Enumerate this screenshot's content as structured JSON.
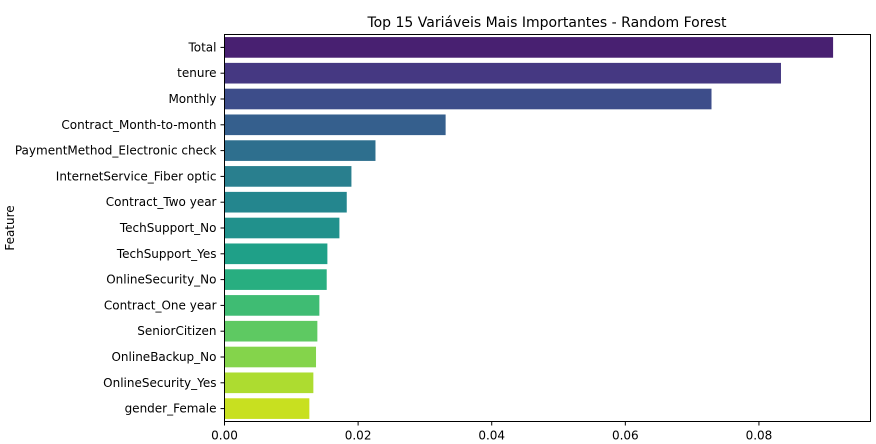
{
  "chart_data": {
    "type": "bar",
    "orientation": "horizontal",
    "title": "Top 15 Variáveis Mais Importantes - Random Forest",
    "ylabel": "Feature",
    "xlabel": "",
    "xlim": [
      0,
      0.0967
    ],
    "xticks": [
      "0.00",
      "0.02",
      "0.04",
      "0.06",
      "0.08"
    ],
    "xtick_values": [
      0,
      0.02,
      0.04,
      0.06,
      0.08
    ],
    "grid": false,
    "palette": "viridis",
    "categories": [
      "Total",
      "tenure",
      "Monthly",
      "Contract_Month-to-month",
      "PaymentMethod_Electronic check",
      "InternetService_Fiber optic",
      "Contract_Two year",
      "TechSupport_No",
      "TechSupport_Yes",
      "OnlineSecurity_No",
      "Contract_One year",
      "SeniorCitizen",
      "OnlineBackup_No",
      "OnlineSecurity_Yes",
      "gender_Female"
    ],
    "values": [
      0.0911,
      0.0833,
      0.0729,
      0.0331,
      0.0226,
      0.019,
      0.0183,
      0.0172,
      0.0154,
      0.0153,
      0.0142,
      0.0139,
      0.0137,
      0.0133,
      0.0127
    ],
    "colors": [
      "#482071",
      "#453882",
      "#3d4d8a",
      "#355f8d",
      "#2e6f8e",
      "#297f8e",
      "#24868e",
      "#21918c",
      "#1fa088",
      "#28ae80",
      "#3fbc73",
      "#5ec962",
      "#84d44b",
      "#addc30",
      "#c8e020"
    ]
  }
}
